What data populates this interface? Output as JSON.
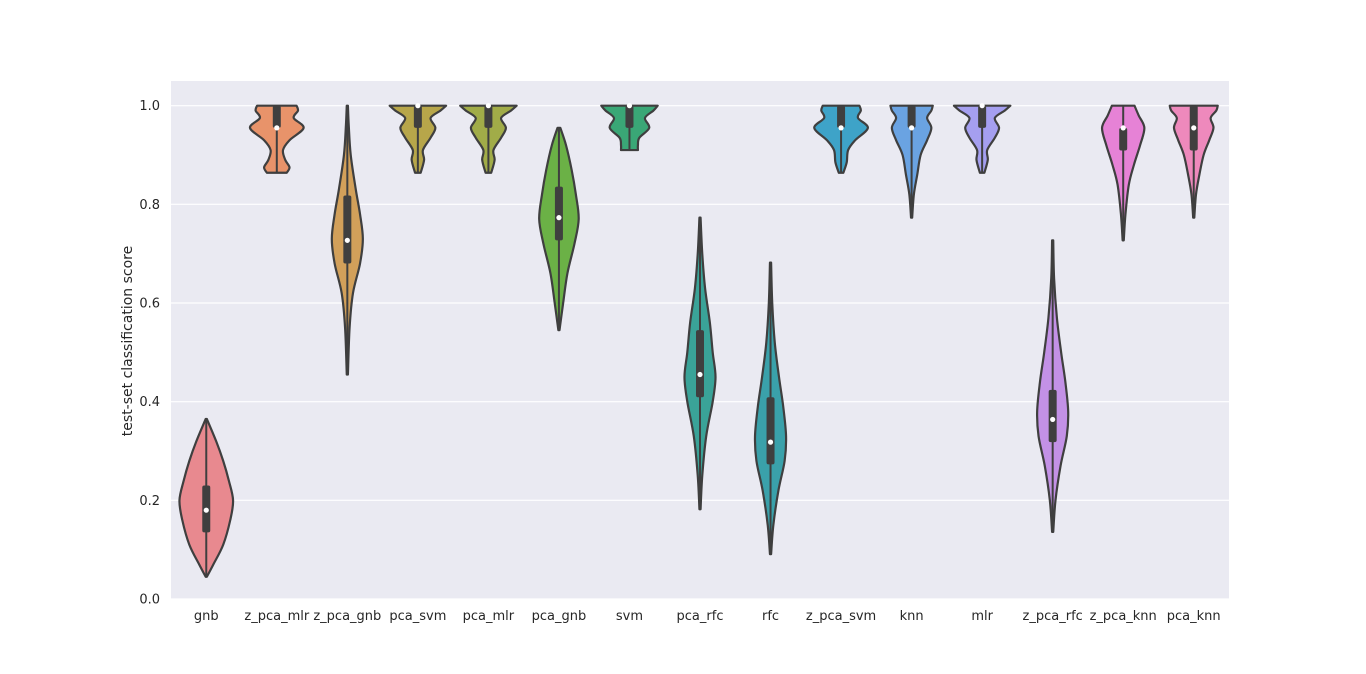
{
  "chart_data": {
    "type": "violin",
    "title": "",
    "xlabel": "",
    "ylabel": "test-set classification score",
    "ylim": [
      0,
      1.05
    ],
    "yticks": [
      0.0,
      0.2,
      0.4,
      0.6,
      0.8,
      1.0
    ],
    "ytick_labels": [
      "0.0",
      "0.2",
      "0.4",
      "0.6",
      "0.8",
      "1.0"
    ],
    "grid": true,
    "background": "#eaeaf2",
    "categories": [
      "gnb",
      "z_pca_mlr",
      "z_pca_gnb",
      "pca_svm",
      "pca_mlr",
      "pca_gnb",
      "svm",
      "pca_rfc",
      "rfc",
      "z_pca_svm",
      "knn",
      "mlr",
      "z_pca_rfc",
      "z_pca_knn",
      "pca_knn"
    ],
    "series": [
      {
        "category": "gnb",
        "color": "#e8898f",
        "min": 0.045,
        "max": 0.365,
        "q1": 0.135,
        "median": 0.18,
        "q3": 0.23,
        "density": [
          [
            0.045,
            0.02
          ],
          [
            0.07,
            0.25
          ],
          [
            0.11,
            0.6
          ],
          [
            0.16,
            0.85
          ],
          [
            0.2,
            0.95
          ],
          [
            0.24,
            0.8
          ],
          [
            0.28,
            0.6
          ],
          [
            0.32,
            0.35
          ],
          [
            0.365,
            0.02
          ]
        ]
      },
      {
        "category": "z_pca_mlr",
        "color": "#e8936a",
        "min": 0.864,
        "max": 1.0,
        "q1": 0.955,
        "median": 0.955,
        "q3": 1.0,
        "density": [
          [
            0.864,
            0.35
          ],
          [
            0.875,
            0.45
          ],
          [
            0.89,
            0.3
          ],
          [
            0.91,
            0.22
          ],
          [
            0.93,
            0.45
          ],
          [
            0.955,
            0.95
          ],
          [
            0.975,
            0.6
          ],
          [
            0.99,
            0.75
          ],
          [
            1.0,
            0.7
          ]
        ]
      },
      {
        "category": "z_pca_gnb",
        "color": "#d2a05a",
        "min": 0.455,
        "max": 1.0,
        "q1": 0.68,
        "median": 0.727,
        "q3": 0.818,
        "density": [
          [
            0.455,
            0.02
          ],
          [
            0.55,
            0.08
          ],
          [
            0.62,
            0.2
          ],
          [
            0.68,
            0.45
          ],
          [
            0.73,
            0.55
          ],
          [
            0.78,
            0.45
          ],
          [
            0.83,
            0.3
          ],
          [
            0.9,
            0.12
          ],
          [
            0.96,
            0.05
          ],
          [
            1.0,
            0.02
          ]
        ]
      },
      {
        "category": "pca_svm",
        "color": "#b7a64a",
        "min": 0.864,
        "max": 1.0,
        "q1": 0.955,
        "median": 1.0,
        "q3": 1.0,
        "density": [
          [
            0.864,
            0.1
          ],
          [
            0.89,
            0.22
          ],
          [
            0.91,
            0.18
          ],
          [
            0.935,
            0.45
          ],
          [
            0.955,
            0.62
          ],
          [
            0.975,
            0.45
          ],
          [
            0.99,
            0.8
          ],
          [
            1.0,
            1.0
          ]
        ]
      },
      {
        "category": "pca_mlr",
        "color": "#a1ac48",
        "min": 0.864,
        "max": 1.0,
        "q1": 0.955,
        "median": 1.0,
        "q3": 1.0,
        "density": [
          [
            0.864,
            0.1
          ],
          [
            0.89,
            0.22
          ],
          [
            0.91,
            0.18
          ],
          [
            0.935,
            0.45
          ],
          [
            0.955,
            0.62
          ],
          [
            0.975,
            0.45
          ],
          [
            0.99,
            0.8
          ],
          [
            1.0,
            1.0
          ]
        ]
      },
      {
        "category": "pca_gnb",
        "color": "#6bb146",
        "min": 0.545,
        "max": 0.955,
        "q1": 0.727,
        "median": 0.773,
        "q3": 0.836,
        "density": [
          [
            0.545,
            0.02
          ],
          [
            0.6,
            0.15
          ],
          [
            0.66,
            0.3
          ],
          [
            0.72,
            0.55
          ],
          [
            0.77,
            0.7
          ],
          [
            0.82,
            0.6
          ],
          [
            0.87,
            0.45
          ],
          [
            0.92,
            0.25
          ],
          [
            0.955,
            0.05
          ]
        ]
      },
      {
        "category": "svm",
        "color": "#3aa776",
        "min": 0.91,
        "max": 1.0,
        "q1": 0.955,
        "median": 1.0,
        "q3": 1.0,
        "density": [
          [
            0.91,
            0.3
          ],
          [
            0.92,
            0.3
          ],
          [
            0.935,
            0.35
          ],
          [
            0.955,
            0.7
          ],
          [
            0.975,
            0.55
          ],
          [
            0.99,
            0.85
          ],
          [
            1.0,
            1.0
          ]
        ]
      },
      {
        "category": "pca_rfc",
        "color": "#3aa398",
        "min": 0.182,
        "max": 0.773,
        "q1": 0.409,
        "median": 0.455,
        "q3": 0.545,
        "density": [
          [
            0.182,
            0.02
          ],
          [
            0.25,
            0.08
          ],
          [
            0.33,
            0.22
          ],
          [
            0.4,
            0.45
          ],
          [
            0.45,
            0.55
          ],
          [
            0.5,
            0.45
          ],
          [
            0.56,
            0.35
          ],
          [
            0.63,
            0.18
          ],
          [
            0.7,
            0.08
          ],
          [
            0.773,
            0.02
          ]
        ]
      },
      {
        "category": "rfc",
        "color": "#3aa1aa",
        "min": 0.091,
        "max": 0.682,
        "q1": 0.273,
        "median": 0.318,
        "q3": 0.409,
        "density": [
          [
            0.091,
            0.02
          ],
          [
            0.15,
            0.1
          ],
          [
            0.22,
            0.28
          ],
          [
            0.28,
            0.5
          ],
          [
            0.33,
            0.55
          ],
          [
            0.39,
            0.45
          ],
          [
            0.45,
            0.3
          ],
          [
            0.52,
            0.15
          ],
          [
            0.6,
            0.06
          ],
          [
            0.682,
            0.02
          ]
        ]
      },
      {
        "category": "z_pca_svm",
        "color": "#3ea3c8",
        "min": 0.864,
        "max": 1.0,
        "q1": 0.955,
        "median": 0.955,
        "q3": 1.0,
        "density": [
          [
            0.864,
            0.08
          ],
          [
            0.885,
            0.2
          ],
          [
            0.91,
            0.25
          ],
          [
            0.93,
            0.5
          ],
          [
            0.955,
            0.95
          ],
          [
            0.975,
            0.6
          ],
          [
            0.99,
            0.7
          ],
          [
            1.0,
            0.65
          ]
        ]
      },
      {
        "category": "knn",
        "color": "#6aa3e2",
        "min": 0.773,
        "max": 1.0,
        "q1": 0.955,
        "median": 0.955,
        "q3": 1.0,
        "density": [
          [
            0.773,
            0.02
          ],
          [
            0.82,
            0.08
          ],
          [
            0.86,
            0.2
          ],
          [
            0.9,
            0.32
          ],
          [
            0.93,
            0.55
          ],
          [
            0.955,
            0.7
          ],
          [
            0.975,
            0.55
          ],
          [
            0.99,
            0.7
          ],
          [
            1.0,
            0.75
          ]
        ]
      },
      {
        "category": "mlr",
        "color": "#a59ff0",
        "min": 0.864,
        "max": 1.0,
        "q1": 0.955,
        "median": 1.0,
        "q3": 1.0,
        "density": [
          [
            0.864,
            0.08
          ],
          [
            0.89,
            0.2
          ],
          [
            0.91,
            0.18
          ],
          [
            0.935,
            0.45
          ],
          [
            0.955,
            0.6
          ],
          [
            0.975,
            0.45
          ],
          [
            0.99,
            0.8
          ],
          [
            1.0,
            1.0
          ]
        ]
      },
      {
        "category": "z_pca_rfc",
        "color": "#c391e6",
        "min": 0.136,
        "max": 0.727,
        "q1": 0.318,
        "median": 0.364,
        "q3": 0.424,
        "density": [
          [
            0.136,
            0.02
          ],
          [
            0.2,
            0.1
          ],
          [
            0.27,
            0.28
          ],
          [
            0.33,
            0.5
          ],
          [
            0.38,
            0.55
          ],
          [
            0.44,
            0.45
          ],
          [
            0.5,
            0.3
          ],
          [
            0.57,
            0.15
          ],
          [
            0.65,
            0.05
          ],
          [
            0.727,
            0.02
          ]
        ]
      },
      {
        "category": "z_pca_knn",
        "color": "#e682d6",
        "min": 0.727,
        "max": 1.0,
        "q1": 0.909,
        "median": 0.955,
        "q3": 0.955,
        "density": [
          [
            0.727,
            0.02
          ],
          [
            0.78,
            0.08
          ],
          [
            0.84,
            0.2
          ],
          [
            0.88,
            0.38
          ],
          [
            0.92,
            0.6
          ],
          [
            0.955,
            0.75
          ],
          [
            0.98,
            0.55
          ],
          [
            1.0,
            0.4
          ]
        ]
      },
      {
        "category": "pca_knn",
        "color": "#ee89bc",
        "min": 0.773,
        "max": 1.0,
        "q1": 0.909,
        "median": 0.955,
        "q3": 1.0,
        "density": [
          [
            0.773,
            0.02
          ],
          [
            0.82,
            0.08
          ],
          [
            0.86,
            0.2
          ],
          [
            0.9,
            0.35
          ],
          [
            0.93,
            0.55
          ],
          [
            0.955,
            0.7
          ],
          [
            0.975,
            0.6
          ],
          [
            0.99,
            0.8
          ],
          [
            1.0,
            0.85
          ]
        ]
      }
    ]
  }
}
